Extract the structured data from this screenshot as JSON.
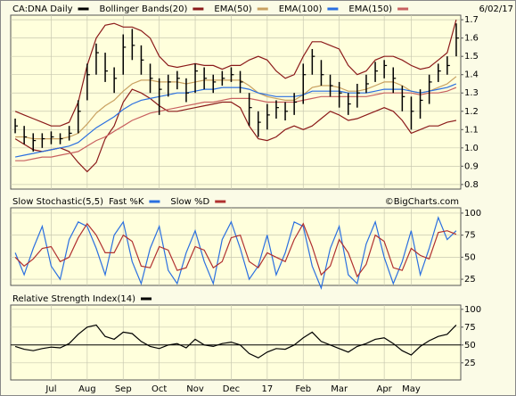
{
  "chart_data": [
    {
      "type": "ohlc",
      "date": "6/02/17",
      "ylim": [
        0.775,
        1.725
      ],
      "yticks": [
        0.8,
        0.9,
        {
          "value": 1,
          "label": "1.0"
        },
        1.1,
        1.2,
        1.3,
        1.4,
        1.5,
        1.6,
        1.7
      ],
      "grid": true,
      "series": [
        {
          "name": "CA:DNA Daily",
          "color": "#000000",
          "high": [
            1.16,
            1.12,
            1.08,
            1.08,
            1.09,
            1.08,
            1.12,
            1.26,
            1.46,
            1.57,
            1.52,
            1.44,
            1.62,
            1.65,
            1.56,
            1.46,
            1.38,
            1.4,
            1.42,
            1.38,
            1.46,
            1.44,
            1.4,
            1.42,
            1.44,
            1.42,
            1.3,
            1.2,
            1.24,
            1.26,
            1.25,
            1.3,
            1.46,
            1.54,
            1.48,
            1.4,
            1.36,
            1.3,
            1.35,
            1.4,
            1.47,
            1.48,
            1.44,
            1.34,
            1.28,
            1.32,
            1.4,
            1.46,
            1.5,
            1.68
          ],
          "low": [
            1.08,
            1.02,
            0.98,
            1.0,
            1.02,
            1.02,
            1.04,
            1.08,
            1.26,
            1.4,
            1.36,
            1.3,
            1.4,
            1.48,
            1.4,
            1.3,
            1.18,
            1.28,
            1.32,
            1.25,
            1.3,
            1.32,
            1.3,
            1.34,
            1.36,
            1.3,
            1.12,
            1.06,
            1.1,
            1.16,
            1.15,
            1.18,
            1.24,
            1.4,
            1.34,
            1.28,
            1.22,
            1.18,
            1.22,
            1.3,
            1.36,
            1.38,
            1.3,
            1.2,
            1.1,
            1.16,
            1.24,
            1.36,
            1.4,
            1.5
          ],
          "values": [
            1.12,
            1.06,
            1.04,
            1.05,
            1.06,
            1.05,
            1.08,
            1.2,
            1.4,
            1.52,
            1.42,
            1.38,
            1.55,
            1.56,
            1.48,
            1.38,
            1.32,
            1.36,
            1.38,
            1.3,
            1.42,
            1.38,
            1.36,
            1.38,
            1.4,
            1.36,
            1.22,
            1.14,
            1.18,
            1.22,
            1.2,
            1.25,
            1.4,
            1.5,
            1.4,
            1.34,
            1.3,
            1.24,
            1.3,
            1.35,
            1.42,
            1.45,
            1.38,
            1.28,
            1.2,
            1.26,
            1.36,
            1.42,
            1.45,
            1.6
          ]
        },
        {
          "name": "Bollinger Bands(20)",
          "color": "#8b1a1a",
          "upper": [
            1.2,
            1.18,
            1.16,
            1.14,
            1.12,
            1.12,
            1.14,
            1.25,
            1.45,
            1.6,
            1.67,
            1.68,
            1.66,
            1.66,
            1.64,
            1.6,
            1.5,
            1.45,
            1.44,
            1.45,
            1.46,
            1.45,
            1.45,
            1.43,
            1.45,
            1.45,
            1.48,
            1.5,
            1.48,
            1.42,
            1.38,
            1.4,
            1.5,
            1.58,
            1.58,
            1.56,
            1.54,
            1.45,
            1.4,
            1.42,
            1.48,
            1.5,
            1.5,
            1.48,
            1.45,
            1.43,
            1.44,
            1.48,
            1.52,
            1.7
          ],
          "lower": [
            1.05,
            1.02,
            0.99,
            0.98,
            0.99,
            1.0,
            0.98,
            0.92,
            0.87,
            0.92,
            1.05,
            1.12,
            1.25,
            1.32,
            1.3,
            1.27,
            1.23,
            1.2,
            1.2,
            1.21,
            1.22,
            1.23,
            1.24,
            1.25,
            1.25,
            1.22,
            1.12,
            1.05,
            1.04,
            1.06,
            1.1,
            1.12,
            1.1,
            1.12,
            1.16,
            1.2,
            1.18,
            1.15,
            1.16,
            1.18,
            1.2,
            1.22,
            1.2,
            1.15,
            1.08,
            1.1,
            1.12,
            1.12,
            1.14,
            1.15
          ]
        },
        {
          "name": "EMA(50)",
          "color": "#c8a060",
          "values": [
            1.06,
            1.06,
            1.05,
            1.05,
            1.05,
            1.05,
            1.06,
            1.08,
            1.13,
            1.19,
            1.23,
            1.26,
            1.31,
            1.35,
            1.37,
            1.37,
            1.36,
            1.36,
            1.36,
            1.35,
            1.36,
            1.37,
            1.37,
            1.37,
            1.37,
            1.37,
            1.34,
            1.3,
            1.28,
            1.27,
            1.26,
            1.26,
            1.29,
            1.33,
            1.34,
            1.34,
            1.33,
            1.31,
            1.31,
            1.32,
            1.34,
            1.36,
            1.36,
            1.34,
            1.31,
            1.3,
            1.31,
            1.33,
            1.35,
            1.39
          ]
        },
        {
          "name": "EMA(100)",
          "color": "#2a6fe0",
          "values": [
            0.95,
            0.96,
            0.97,
            0.98,
            0.99,
            1.0,
            1.01,
            1.03,
            1.07,
            1.11,
            1.14,
            1.17,
            1.21,
            1.24,
            1.26,
            1.27,
            1.28,
            1.29,
            1.3,
            1.3,
            1.31,
            1.32,
            1.32,
            1.33,
            1.33,
            1.33,
            1.32,
            1.3,
            1.29,
            1.28,
            1.28,
            1.28,
            1.29,
            1.31,
            1.31,
            1.31,
            1.31,
            1.3,
            1.3,
            1.3,
            1.31,
            1.32,
            1.32,
            1.32,
            1.31,
            1.3,
            1.31,
            1.32,
            1.33,
            1.35
          ]
        },
        {
          "name": "EMA(150)",
          "color": "#c86060",
          "values": [
            0.93,
            0.93,
            0.94,
            0.95,
            0.95,
            0.96,
            0.97,
            0.98,
            1.01,
            1.04,
            1.06,
            1.09,
            1.12,
            1.15,
            1.17,
            1.19,
            1.2,
            1.21,
            1.22,
            1.23,
            1.24,
            1.25,
            1.25,
            1.26,
            1.27,
            1.27,
            1.27,
            1.26,
            1.25,
            1.25,
            1.25,
            1.25,
            1.26,
            1.27,
            1.28,
            1.28,
            1.28,
            1.28,
            1.28,
            1.28,
            1.29,
            1.3,
            1.3,
            1.3,
            1.3,
            1.29,
            1.3,
            1.3,
            1.31,
            1.33
          ]
        }
      ]
    },
    {
      "type": "line",
      "title": "Slow Stochastic(5,5)",
      "source": "©BigCharts.com",
      "ylim": [
        18,
        106
      ],
      "yticks": [
        25,
        50,
        75,
        100
      ],
      "grid": true,
      "series": [
        {
          "name": "Fast %K",
          "color": "#2a6fe0",
          "values": [
            55,
            30,
            60,
            85,
            40,
            25,
            70,
            90,
            85,
            60,
            30,
            75,
            90,
            45,
            20,
            60,
            85,
            35,
            20,
            55,
            80,
            45,
            20,
            70,
            90,
            60,
            25,
            40,
            75,
            30,
            55,
            90,
            85,
            40,
            15,
            60,
            85,
            30,
            20,
            65,
            90,
            50,
            20,
            45,
            80,
            30,
            60,
            95,
            70,
            80
          ]
        },
        {
          "name": "Slow %D",
          "color": "#b03030",
          "values": [
            50,
            40,
            48,
            60,
            62,
            45,
            50,
            72,
            88,
            75,
            55,
            55,
            75,
            68,
            40,
            38,
            62,
            58,
            35,
            38,
            62,
            58,
            38,
            45,
            72,
            75,
            45,
            38,
            55,
            50,
            45,
            70,
            88,
            62,
            30,
            40,
            70,
            55,
            28,
            42,
            75,
            68,
            38,
            35,
            60,
            52,
            48,
            78,
            80,
            76
          ]
        }
      ]
    },
    {
      "type": "line",
      "title": "Relative Strength Index(14)",
      "ylim": [
        1,
        106
      ],
      "yticks": [
        25,
        50,
        75,
        100
      ],
      "grid": true,
      "reference_line": 50,
      "categories": [
        null,
        null,
        null,
        null,
        "Jul",
        null,
        null,
        null,
        "Aug",
        null,
        null,
        null,
        "Sep",
        null,
        null,
        null,
        "Oct",
        null,
        null,
        null,
        "Nov",
        null,
        null,
        null,
        "Dec",
        null,
        null,
        null,
        "17",
        null,
        null,
        null,
        "Feb",
        null,
        null,
        null,
        "Mar",
        null,
        null,
        null,
        null,
        "Apr",
        null,
        null,
        "May",
        null,
        null,
        null,
        null,
        null
      ],
      "series": [
        {
          "color": "#000000",
          "values": [
            48,
            44,
            42,
            45,
            47,
            46,
            52,
            65,
            75,
            78,
            62,
            58,
            68,
            66,
            55,
            48,
            45,
            50,
            52,
            46,
            58,
            50,
            48,
            52,
            54,
            50,
            38,
            32,
            40,
            45,
            44,
            50,
            60,
            68,
            55,
            50,
            45,
            40,
            48,
            52,
            58,
            60,
            52,
            42,
            36,
            48,
            56,
            62,
            65,
            78
          ]
        }
      ]
    }
  ]
}
